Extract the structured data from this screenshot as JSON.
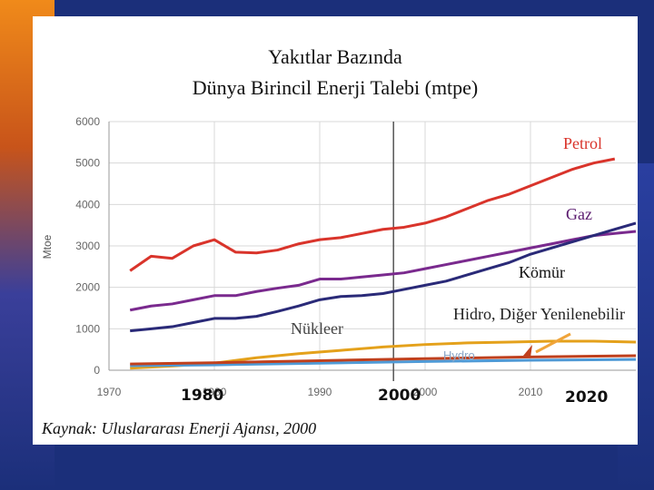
{
  "title_line1": "Yakıtlar Bazında",
  "title_line2": "Dünya Birincil Enerji Talebi (mtpe)",
  "source": "Kaynak: Uluslararası Enerji Ajansı, 2000",
  "overlay_ticks": [
    "1980",
    "2000",
    "2020"
  ],
  "colors": {
    "petrol": "#d9342b",
    "gaz": "#7a2a8e",
    "komur": "#2a2a78",
    "nukleer": "#e4a11b",
    "hidro": "#4f9ad6",
    "diger": "#c0401d",
    "accent_arrow": "#f0a43a"
  },
  "chart_data": {
    "type": "line",
    "ylabel": "Mtoe",
    "xlim": [
      1970,
      2020
    ],
    "ylim": [
      0,
      6000
    ],
    "x_ticks": [
      1970,
      1980,
      1990,
      2000,
      2010
    ],
    "y_ticks": [
      0,
      1000,
      2000,
      3000,
      4000,
      5000,
      6000
    ],
    "divider_year": 1997,
    "series": [
      {
        "name": "Petrol",
        "x": [
          1972,
          1974,
          1976,
          1978,
          1980,
          1982,
          1984,
          1986,
          1988,
          1990,
          1992,
          1994,
          1996,
          1998,
          2000,
          2002,
          2004,
          2006,
          2008,
          2010,
          2012,
          2014,
          2016,
          2018
        ],
        "values": [
          2400,
          2750,
          2700,
          3000,
          3150,
          2850,
          2830,
          2900,
          3050,
          3150,
          3200,
          3300,
          3400,
          3450,
          3550,
          3700,
          3900,
          4100,
          4250,
          4450,
          4650,
          4850,
          5000,
          5100
        ]
      },
      {
        "name": "Gaz",
        "x": [
          1972,
          1974,
          1976,
          1978,
          1980,
          1982,
          1984,
          1986,
          1988,
          1990,
          1992,
          1994,
          1996,
          1998,
          2000,
          2002,
          2004,
          2006,
          2008,
          2010,
          2012,
          2014,
          2016,
          2018,
          2020
        ],
        "values": [
          1450,
          1550,
          1600,
          1700,
          1800,
          1800,
          1900,
          1980,
          2050,
          2200,
          2200,
          2250,
          2300,
          2350,
          2450,
          2550,
          2650,
          2750,
          2850,
          2950,
          3050,
          3150,
          3250,
          3300,
          3350
        ]
      },
      {
        "name": "Kömür",
        "x": [
          1972,
          1974,
          1976,
          1978,
          1980,
          1982,
          1984,
          1986,
          1988,
          1990,
          1992,
          1994,
          1996,
          1998,
          2000,
          2002,
          2004,
          2006,
          2008,
          2010,
          2012,
          2014,
          2016,
          2018,
          2020
        ],
        "values": [
          950,
          1000,
          1050,
          1150,
          1250,
          1250,
          1300,
          1420,
          1550,
          1700,
          1780,
          1800,
          1850,
          1950,
          2050,
          2150,
          2300,
          2450,
          2600,
          2800,
          2950,
          3100,
          3250,
          3400,
          3550
        ]
      },
      {
        "name": "Nükleer",
        "x": [
          1972,
          1976,
          1980,
          1984,
          1988,
          1992,
          1996,
          2000,
          2004,
          2008,
          2012,
          2016,
          2020
        ],
        "values": [
          50,
          100,
          170,
          300,
          400,
          480,
          560,
          620,
          660,
          680,
          700,
          700,
          680
        ]
      },
      {
        "name": "Hydro",
        "x": [
          1972,
          1980,
          1990,
          2000,
          2010,
          2020
        ],
        "values": [
          110,
          130,
          170,
          210,
          240,
          260
        ]
      },
      {
        "name": "Diğer",
        "x": [
          1972,
          1980,
          1990,
          2000,
          2010,
          2020
        ],
        "values": [
          150,
          180,
          230,
          280,
          320,
          350
        ]
      }
    ],
    "annotations": [
      "Petrol",
      "Gaz",
      "Kömür",
      "Nükleer",
      "Hidro, Diğer Yenilenebilir",
      "Hydro"
    ]
  }
}
